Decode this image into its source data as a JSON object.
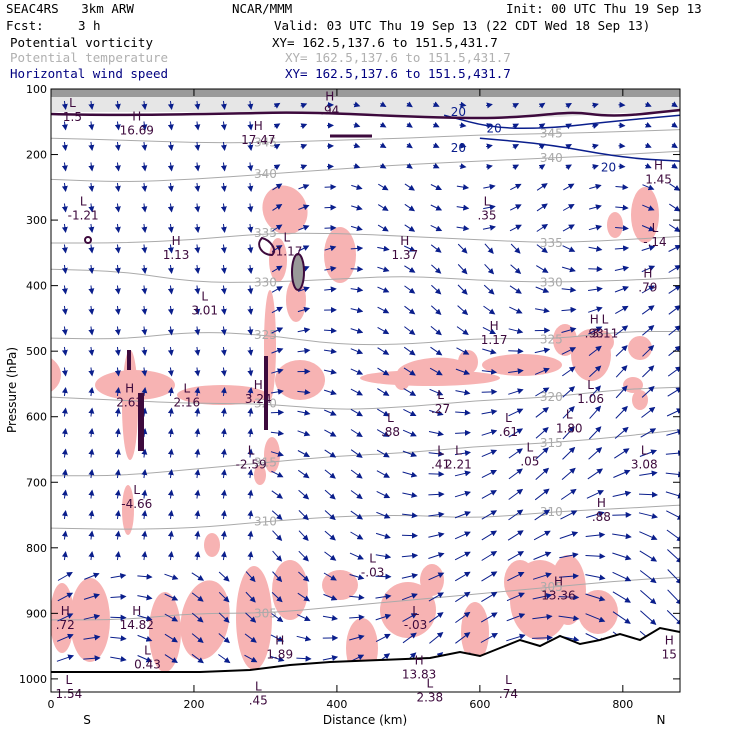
{
  "header": {
    "model_name": "SEAC4RS   3km ARW",
    "center": "NCAR/MMM",
    "init": "Init: 00 UTC Thu 19 Sep 13",
    "fcst_label": "Fcst:",
    "fcst_value": "3 h",
    "valid": "Valid: 03 UTC Thu 19 Sep 13 (22 CDT Wed 18 Sep 13)"
  },
  "fields": [
    {
      "name": "Potential vorticity",
      "section": "XY= 162.5,137.6 to 151.5,431.7",
      "color": "#000000"
    },
    {
      "name": "Potential temperature",
      "section": "XY= 162.5,137.6 to 151.5,431.7",
      "color": "#b0b0b0"
    },
    {
      "name": "Horizontal wind speed",
      "section": "XY= 162.5,137.6 to 151.5,431.7",
      "color": "#000080"
    }
  ],
  "colors": {
    "pv_fill": "#f7b3b3",
    "pv_line": "#3d0a3d",
    "theta": "#aaaaaa",
    "wind": "#0a1e8c",
    "terrain": "#000000"
  },
  "chart_data": {
    "type": "cross-section",
    "xlabel": "Distance (km)",
    "ylabel": "Pressure (hPa)",
    "xlim": [
      0,
      880
    ],
    "ylim": [
      1020,
      100
    ],
    "x_ticks": [
      0,
      200,
      400,
      600,
      800
    ],
    "y_ticks": [
      100,
      200,
      300,
      400,
      500,
      600,
      700,
      800,
      900,
      1000
    ],
    "end_labels": {
      "left": "S",
      "right": "N"
    },
    "theta_contours": [
      {
        "label": "345",
        "points": [
          [
            0,
            175
          ],
          [
            100,
            178
          ],
          [
            200,
            182
          ],
          [
            300,
            182
          ],
          [
            400,
            178
          ],
          [
            500,
            175
          ],
          [
            600,
            170
          ],
          [
            700,
            168
          ],
          [
            800,
            165
          ],
          [
            880,
            162
          ]
        ]
      },
      {
        "label": "340",
        "points": [
          [
            0,
            238
          ],
          [
            100,
            242
          ],
          [
            200,
            238
          ],
          [
            300,
            230
          ],
          [
            400,
            222
          ],
          [
            500,
            215
          ],
          [
            600,
            210
          ],
          [
            700,
            205
          ],
          [
            800,
            200
          ],
          [
            880,
            195
          ]
        ]
      },
      {
        "label": "335",
        "points": [
          [
            0,
            335
          ],
          [
            100,
            335
          ],
          [
            200,
            330
          ],
          [
            300,
            320
          ],
          [
            400,
            320
          ],
          [
            500,
            325
          ],
          [
            600,
            330
          ],
          [
            700,
            335
          ],
          [
            800,
            330
          ],
          [
            880,
            325
          ]
        ]
      },
      {
        "label": "330",
        "points": [
          [
            0,
            375
          ],
          [
            100,
            378
          ],
          [
            200,
            395
          ],
          [
            300,
            395
          ],
          [
            400,
            390
          ],
          [
            500,
            385
          ],
          [
            600,
            392
          ],
          [
            700,
            395
          ],
          [
            800,
            392
          ],
          [
            880,
            388
          ]
        ]
      },
      {
        "label": "325",
        "points": [
          [
            0,
            480
          ],
          [
            100,
            482
          ],
          [
            200,
            470
          ],
          [
            300,
            475
          ],
          [
            400,
            490
          ],
          [
            500,
            490
          ],
          [
            600,
            480
          ],
          [
            700,
            482
          ],
          [
            800,
            470
          ],
          [
            880,
            470
          ]
        ]
      },
      {
        "label": "320",
        "points": [
          [
            0,
            570
          ],
          [
            100,
            575
          ],
          [
            200,
            580
          ],
          [
            300,
            580
          ],
          [
            400,
            590
          ],
          [
            500,
            585
          ],
          [
            600,
            575
          ],
          [
            700,
            570
          ],
          [
            800,
            558
          ],
          [
            880,
            555
          ]
        ]
      },
      {
        "label": "315",
        "points": [
          [
            0,
            690
          ],
          [
            100,
            690
          ],
          [
            200,
            680
          ],
          [
            300,
            670
          ],
          [
            400,
            660
          ],
          [
            500,
            655
          ],
          [
            600,
            645
          ],
          [
            700,
            640
          ],
          [
            800,
            630
          ],
          [
            880,
            620
          ]
        ]
      },
      {
        "label": "310",
        "points": [
          [
            0,
            770
          ],
          [
            100,
            772
          ],
          [
            200,
            770
          ],
          [
            300,
            760
          ],
          [
            400,
            752
          ],
          [
            500,
            750
          ],
          [
            600,
            755
          ],
          [
            700,
            745
          ],
          [
            800,
            740
          ],
          [
            880,
            735
          ]
        ]
      },
      {
        "label": "305",
        "points": [
          [
            0,
            910
          ],
          [
            100,
            910
          ],
          [
            200,
            900
          ],
          [
            300,
            900
          ],
          [
            400,
            890
          ],
          [
            500,
            880
          ],
          [
            600,
            870
          ],
          [
            700,
            860
          ],
          [
            800,
            850
          ],
          [
            880,
            845
          ]
        ]
      }
    ],
    "wind_contours": [
      {
        "label": "20",
        "points": [
          [
            550,
            140
          ],
          [
            620,
            160
          ],
          [
            700,
            160
          ],
          [
            780,
            150
          ],
          [
            880,
            140
          ]
        ]
      },
      {
        "label": "20",
        "points": [
          [
            600,
            175
          ],
          [
            700,
            185
          ],
          [
            800,
            205
          ],
          [
            880,
            210
          ]
        ]
      }
    ],
    "pv_extrema": [
      {
        "type": "L",
        "value": "1.5",
        "x": 30,
        "p": 140
      },
      {
        "type": "H",
        "value": "16.69",
        "x": 120,
        "p": 160
      },
      {
        "type": "H",
        "value": "17.47",
        "x": 290,
        "p": 175
      },
      {
        "type": "H",
        "value": ".94",
        "x": 390,
        "p": 130
      },
      {
        "type": "H",
        "value": "1.45",
        "x": 850,
        "p": 235
      },
      {
        "type": "L",
        "value": "-1.21",
        "x": 45,
        "p": 290
      },
      {
        "type": "H",
        "value": "1.13",
        "x": 175,
        "p": 350
      },
      {
        "type": "L",
        "value": "-1.17",
        "x": 330,
        "p": 345
      },
      {
        "type": "H",
        "value": "1.37",
        "x": 495,
        "p": 350
      },
      {
        "type": "L",
        "value": ".35",
        "x": 610,
        "p": 290
      },
      {
        "type": "L",
        "value": "-.14",
        "x": 845,
        "p": 330
      },
      {
        "type": "H",
        "value": ".79",
        "x": 835,
        "p": 400
      },
      {
        "type": "L",
        "value": "3.01",
        "x": 215,
        "p": 435
      },
      {
        "type": "H",
        "value": "1.17",
        "x": 620,
        "p": 480
      },
      {
        "type": "H",
        "value": ".93",
        "x": 760,
        "p": 470
      },
      {
        "type": "L",
        "value": "3.11",
        "x": 775,
        "p": 470
      },
      {
        "type": "H",
        "value": "2.63",
        "x": 110,
        "p": 575
      },
      {
        "type": "L",
        "value": "2.16",
        "x": 190,
        "p": 575
      },
      {
        "type": "H",
        "value": "3.24",
        "x": 290,
        "p": 570
      },
      {
        "type": "L",
        "value": ".27",
        "x": 545,
        "p": 585
      },
      {
        "type": "L",
        "value": "1.06",
        "x": 755,
        "p": 570
      },
      {
        "type": "L",
        "value": "1.80",
        "x": 725,
        "p": 615
      },
      {
        "type": "L",
        "value": ".88",
        "x": 475,
        "p": 620
      },
      {
        "type": "L",
        "value": ".61",
        "x": 640,
        "p": 620
      },
      {
        "type": "L",
        "value": "-2.59",
        "x": 280,
        "p": 670
      },
      {
        "type": "L",
        "value": ".41",
        "x": 545,
        "p": 670
      },
      {
        "type": "L",
        "value": "2.21",
        "x": 570,
        "p": 670
      },
      {
        "type": "L",
        "value": ".05",
        "x": 670,
        "p": 665
      },
      {
        "type": "L",
        "value": "3.08",
        "x": 830,
        "p": 670
      },
      {
        "type": "L",
        "value": "-4.66",
        "x": 120,
        "p": 730
      },
      {
        "type": "H",
        "value": ".88",
        "x": 770,
        "p": 750
      },
      {
        "type": "L",
        "value": "-.03",
        "x": 450,
        "p": 835
      },
      {
        "type": "H",
        "value": "13.36",
        "x": 710,
        "p": 870
      },
      {
        "type": "H",
        "value": ".72",
        "x": 20,
        "p": 915
      },
      {
        "type": "H",
        "value": "14.82",
        "x": 120,
        "p": 915
      },
      {
        "type": "L",
        "value": "-.03",
        "x": 510,
        "p": 915
      },
      {
        "type": "H",
        "value": "1.89",
        "x": 320,
        "p": 960
      },
      {
        "type": "L",
        "value": "0.43",
        "x": 135,
        "p": 975
      },
      {
        "type": "H",
        "value": "13.83",
        "x": 515,
        "p": 990
      },
      {
        "type": "L",
        "value": "1.54",
        "x": 25,
        "p": 1020
      },
      {
        "type": "L",
        "value": ".45",
        "x": 290,
        "p": 1030
      },
      {
        "type": "L",
        "value": "2.38",
        "x": 530,
        "p": 1025
      },
      {
        "type": "L",
        "value": ".74",
        "x": 640,
        "p": 1020
      },
      {
        "type": "H",
        "value": "15",
        "x": 865,
        "p": 960
      }
    ],
    "wind_labels": [
      {
        "label": "20",
        "x": 570,
        "p": 135
      },
      {
        "label": "20",
        "x": 570,
        "p": 190
      },
      {
        "label": "20",
        "x": 780,
        "p": 220
      },
      {
        "label": "20",
        "x": 620,
        "p": 160
      }
    ]
  }
}
